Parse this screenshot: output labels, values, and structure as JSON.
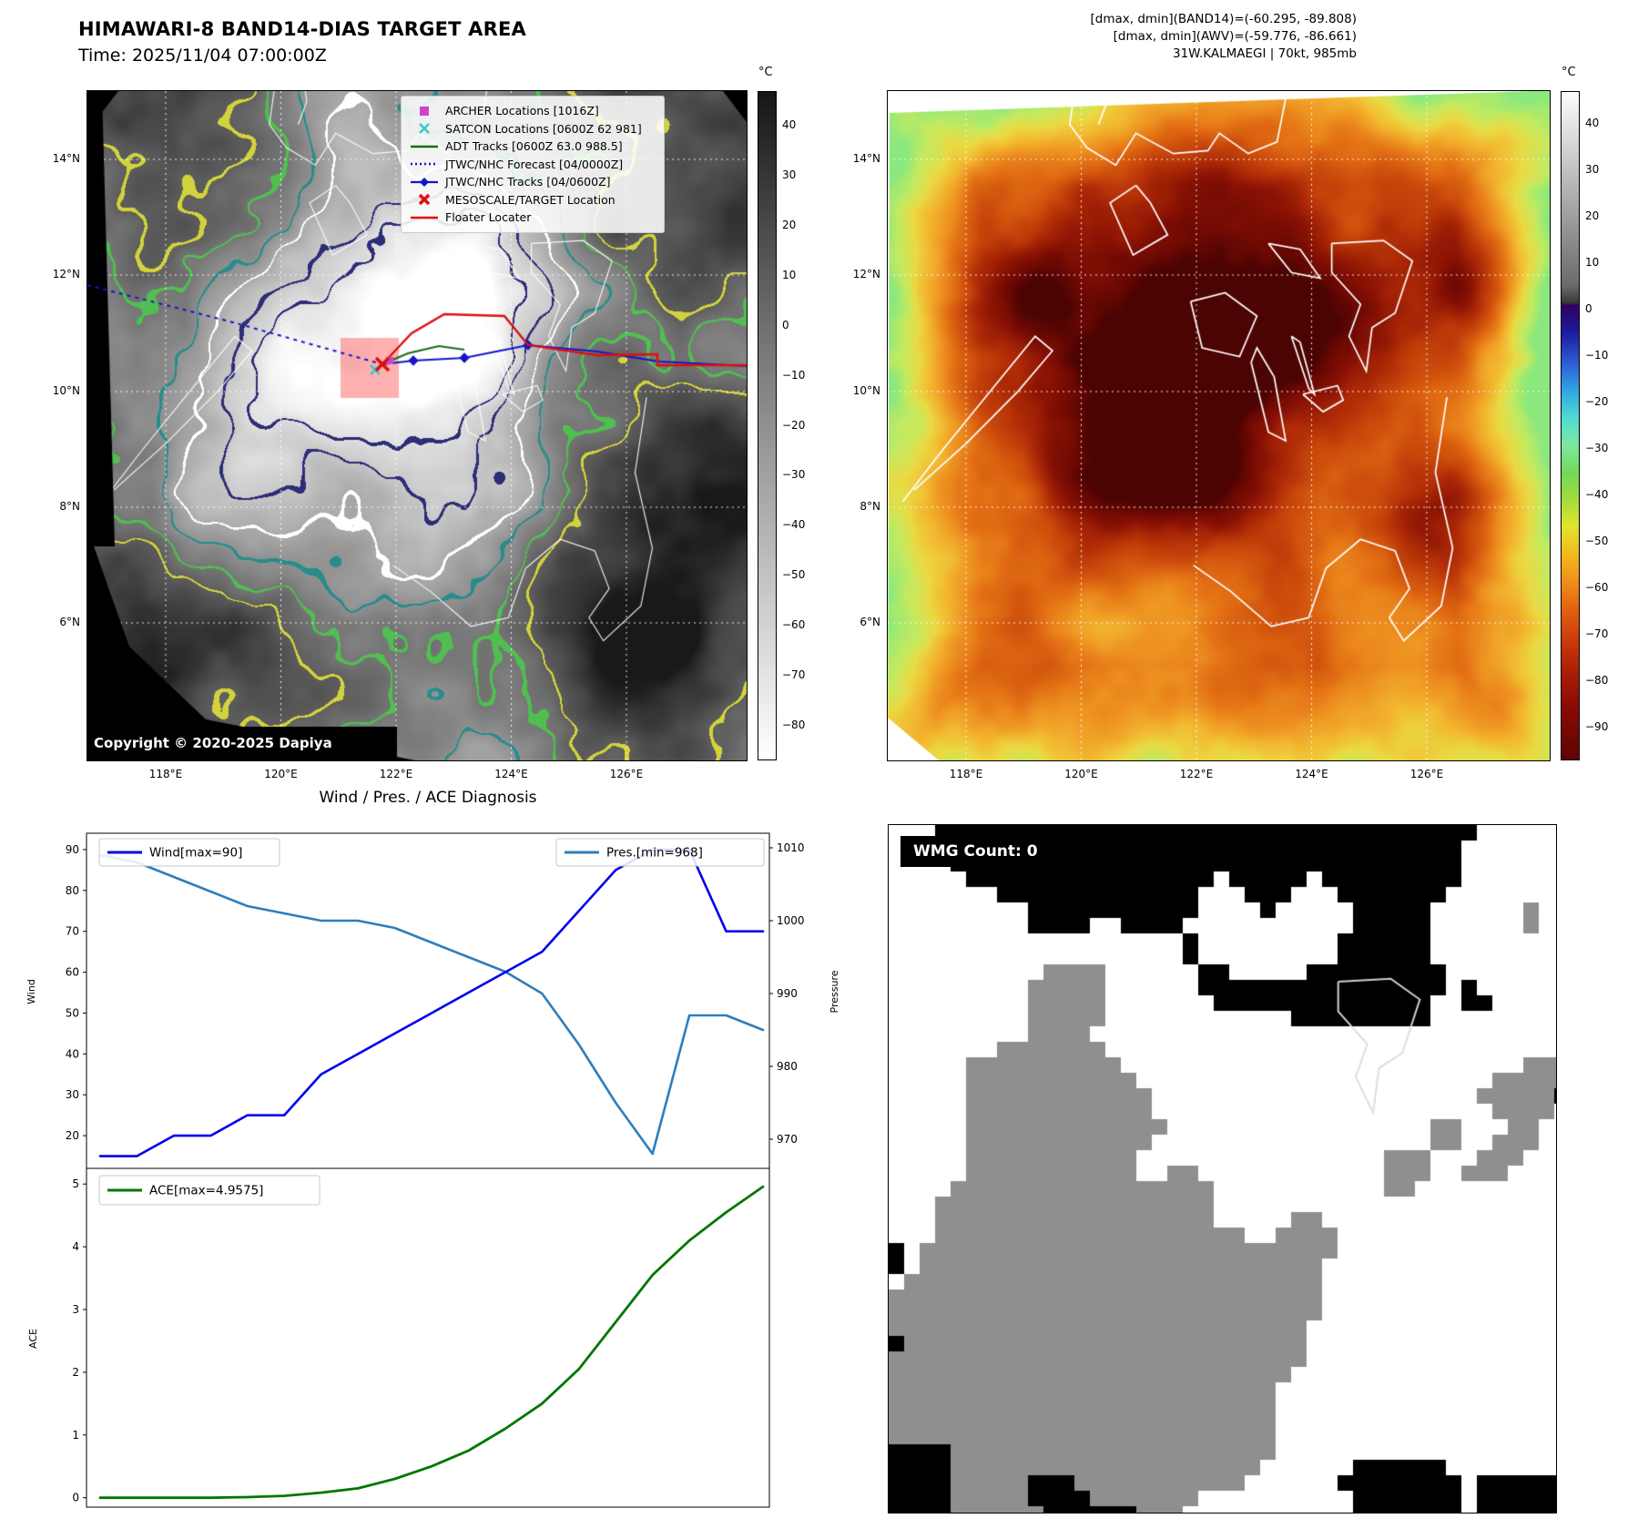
{
  "colors": {
    "wind_line": "#0000ee",
    "pressure_line": "#2e7ebc",
    "ace_line": "#007700",
    "track_blue": "#1414cc",
    "adt_green": "#1a6b1a",
    "floater_red": "#dd1111",
    "archer_magenta": "#cc44cc",
    "satcon_cyan": "#3fc8c8",
    "target_box_fill": "#ff4646"
  },
  "panel1": {
    "title": "HIMAWARI-8 BAND14-DIAS TARGET AREA",
    "time_label": "Time: 2025/11/04 07:00:00Z",
    "copyright": "Copyright © 2020-2025 Dapiya",
    "x_ticks": [
      "118°E",
      "120°E",
      "122°E",
      "124°E",
      "126°E"
    ],
    "y_ticks": [
      "14°N",
      "12°N",
      "10°N",
      "8°N",
      "6°N"
    ],
    "colorbar": {
      "unit": "°C",
      "range": [
        47,
        -87
      ],
      "ticks": [
        40,
        30,
        20,
        10,
        0,
        -10,
        -20,
        -30,
        -40,
        -50,
        -60,
        -70,
        -80
      ],
      "gradient": [
        [
          "0%",
          "#161616"
        ],
        [
          "35%",
          "#6f6f6f"
        ],
        [
          "100%",
          "#ffffff"
        ]
      ]
    },
    "legend_items": [
      {
        "label": "ARCHER Locations [1016Z]",
        "marker": "square",
        "color": "#cc44cc"
      },
      {
        "label": "SATCON Locations [0600Z 62 981]",
        "marker": "x",
        "color": "#3fc8c8"
      },
      {
        "label": "ADT Tracks [0600Z 63.0 988.5]",
        "marker": "line",
        "color": "#1a6b1a"
      },
      {
        "label": "JTWC/NHC Forecast [04/0000Z]",
        "marker": "dotted-line",
        "color": "#1414cc"
      },
      {
        "label": "JTWC/NHC Tracks [04/0600Z]",
        "marker": "line-diamond",
        "color": "#1414cc"
      },
      {
        "label": "MESOSCALE/TARGET Location",
        "marker": "x-bold",
        "color": "#dd1111"
      },
      {
        "label": "Floater Locater",
        "marker": "line",
        "color": "#dd1111"
      }
    ]
  },
  "panel2": {
    "annotations": [
      "[dmax, dmin](BAND14)=(-60.295, -89.808)",
      "[dmax, dmin](AWV)=(-59.776, -86.661)",
      "31W.KALMAEGI | 70kt, 985mb"
    ],
    "x_ticks": [
      "118°E",
      "120°E",
      "122°E",
      "124°E",
      "126°E"
    ],
    "y_ticks": [
      "14°N",
      "12°N",
      "10°N",
      "8°N",
      "6°N"
    ],
    "colorbar": {
      "unit": "°C",
      "range": [
        47,
        -97
      ],
      "ticks": [
        40,
        30,
        20,
        10,
        0,
        -10,
        -20,
        -30,
        -40,
        -50,
        -60,
        -70,
        -80,
        -90
      ],
      "gradient": [
        [
          "0%",
          "#fdfdfd"
        ],
        [
          "29%",
          "#6a6a6a"
        ],
        [
          "31.5%",
          "#3a3a3a"
        ],
        [
          "32%",
          "#2e0060"
        ],
        [
          "36%",
          "#1c1c9c"
        ],
        [
          "41%",
          "#2e62d8"
        ],
        [
          "45%",
          "#30aae0"
        ],
        [
          "49%",
          "#52dcd2"
        ],
        [
          "53%",
          "#7ce8a0"
        ],
        [
          "57%",
          "#74d858"
        ],
        [
          "61%",
          "#a0dc3c"
        ],
        [
          "65%",
          "#e0e42e"
        ],
        [
          "69%",
          "#f0bc1e"
        ],
        [
          "73%",
          "#f0941a"
        ],
        [
          "77%",
          "#e46612"
        ],
        [
          "82%",
          "#cc3c0a"
        ],
        [
          "87%",
          "#aa1e06"
        ],
        [
          "92%",
          "#8a0c04"
        ],
        [
          "100%",
          "#600402"
        ]
      ]
    }
  },
  "panel3": {
    "title": "Wind / Pres. / ACE Diagnosis",
    "ylabel_left": "Wind",
    "ylabel_right": "Pressure",
    "ylabel_ace": "ACE",
    "wind_legend": "Wind[max=90]",
    "pressure_legend": "Pres.[min=968]",
    "ace_legend": "ACE[max=4.9575]",
    "wind_ticks": [
      20,
      30,
      40,
      50,
      60,
      70,
      80,
      90
    ],
    "pressure_ticks": [
      970,
      980,
      990,
      1000,
      1010
    ],
    "ace_ticks": [
      0,
      1,
      2,
      3,
      4,
      5
    ]
  },
  "panel4": {
    "label": "WMG Count: 0"
  },
  "chart_data": [
    {
      "type": "line",
      "title": "Wind / Pres. / ACE Diagnosis",
      "x": [
        0,
        1,
        2,
        3,
        4,
        5,
        6,
        7,
        8,
        9,
        10,
        11,
        12,
        13,
        14,
        15,
        16,
        17,
        18
      ],
      "series": [
        {
          "name": "Wind[max=90]",
          "axis": "left",
          "color": "#0000ee",
          "values": [
            15,
            15,
            20,
            20,
            25,
            25,
            35,
            40,
            45,
            50,
            55,
            60,
            65,
            75,
            85,
            90,
            90,
            70,
            70
          ]
        },
        {
          "name": "Pres.[min=968]",
          "axis": "right",
          "color": "#2e7ebc",
          "values": [
            1009,
            1008,
            1006,
            1004,
            1002,
            1001,
            1000,
            1000,
            999,
            997,
            995,
            993,
            990,
            983,
            975,
            968,
            987,
            987,
            985
          ]
        }
      ],
      "ylabel_left": "Wind",
      "ylabel_right": "Pressure",
      "ylim_left": [
        12,
        94
      ],
      "ylim_right": [
        966,
        1012
      ],
      "legend_position": "top",
      "grid": false
    },
    {
      "type": "line",
      "x": [
        0,
        1,
        2,
        3,
        4,
        5,
        6,
        7,
        8,
        9,
        10,
        11,
        12,
        13,
        14,
        15,
        16,
        17,
        18
      ],
      "series": [
        {
          "name": "ACE[max=4.9575]",
          "color": "#007700",
          "values": [
            0,
            0,
            0,
            0,
            0.01,
            0.03,
            0.08,
            0.15,
            0.3,
            0.5,
            0.75,
            1.1,
            1.5,
            2.05,
            2.8,
            3.55,
            4.1,
            4.55,
            4.9575
          ]
        }
      ],
      "ylabel": "ACE",
      "ylim": [
        -0.15,
        5.25
      ],
      "grid": false
    }
  ]
}
